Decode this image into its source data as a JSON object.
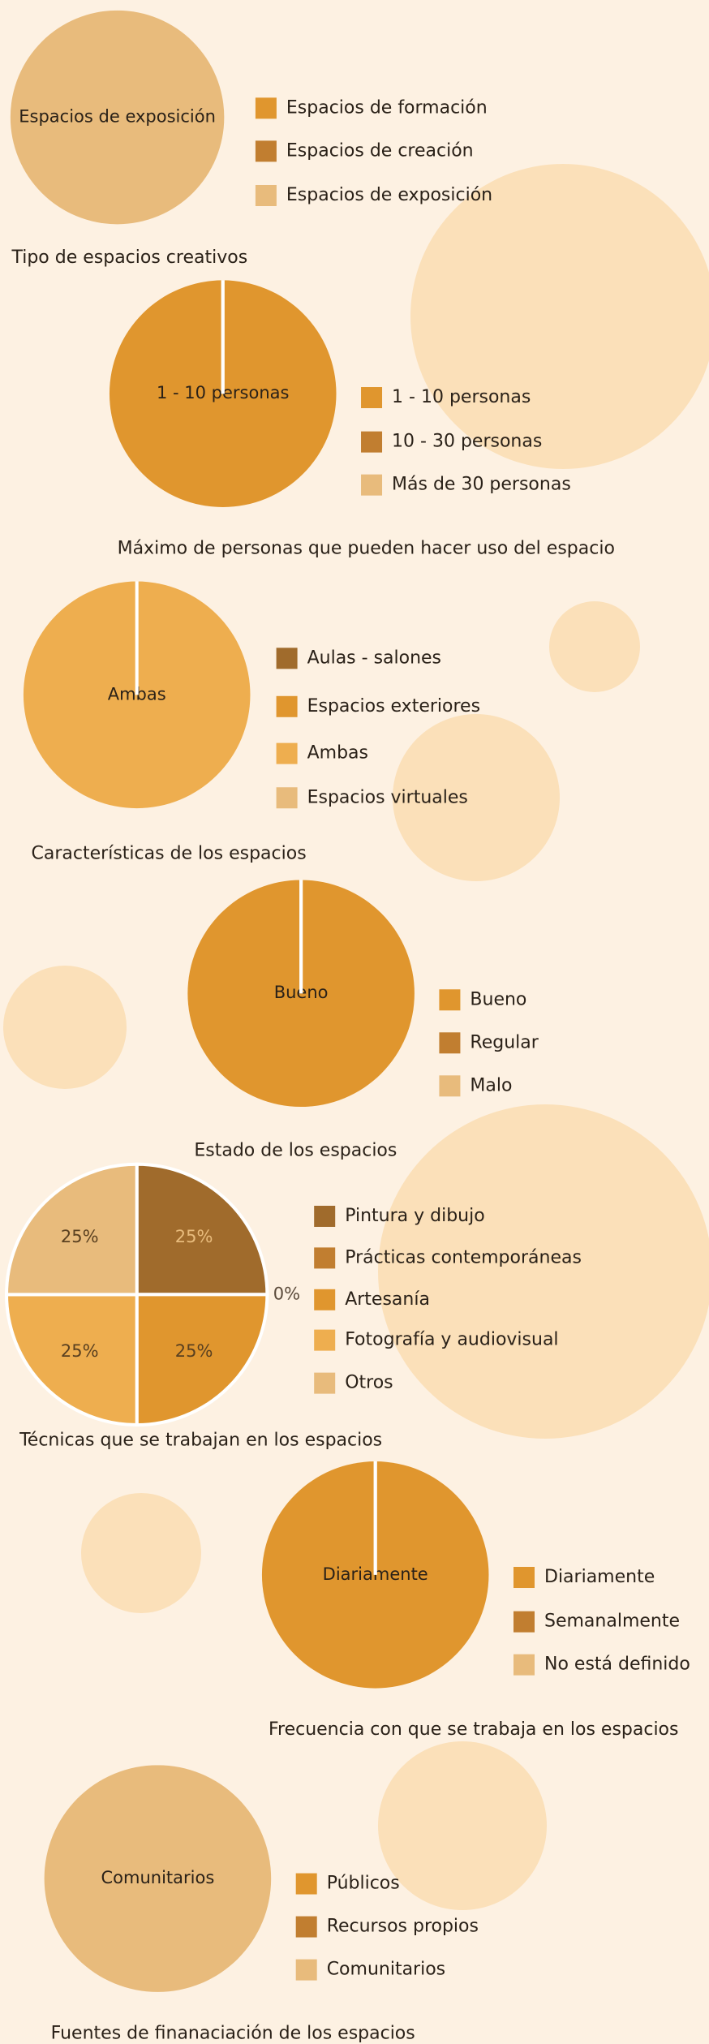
{
  "chart_data": [
    {
      "type": "pie",
      "title": "Tipo de espacios creativos",
      "categories": [
        "Espacios de formación",
        "Espacios de creación",
        "Espacios de exposición"
      ],
      "values": [
        0,
        0,
        100
      ],
      "colors": [
        "#e0962e",
        "#c17e30",
        "#e8bb7c"
      ]
    },
    {
      "type": "pie",
      "title": "Máximo de personas que pueden hacer uso del espacio",
      "categories": [
        "1 - 10 personas",
        "10 - 30 personas",
        "Más de 30 personas"
      ],
      "values": [
        100,
        0,
        0
      ],
      "colors": [
        "#e0962e",
        "#c17e30",
        "#e8bb7c"
      ]
    },
    {
      "type": "pie",
      "title": "Características de los espacios",
      "categories": [
        "Aulas - salones",
        "Espacios exteriores",
        "Ambas",
        "Espacios virtuales"
      ],
      "values": [
        0,
        0,
        100,
        0
      ],
      "colors": [
        "#a06b2c",
        "#e0962e",
        "#eeae4f",
        "#e8bb7c"
      ]
    },
    {
      "type": "pie",
      "title": "Estado de los espacios",
      "categories": [
        "Bueno",
        "Regular",
        "Malo"
      ],
      "values": [
        100,
        0,
        0
      ],
      "colors": [
        "#e0962e",
        "#c17e30",
        "#e8bb7c"
      ]
    },
    {
      "type": "pie",
      "title": "Técnicas que se trabajan en los espacios",
      "categories": [
        "Pintura y dibujo",
        "Prácticas contemporáneas",
        "Artesanía",
        "Fotografía y audiovisual",
        "Otros"
      ],
      "values": [
        25,
        0,
        25,
        25,
        25
      ],
      "value_labels": [
        "25%",
        "0%",
        "25%",
        "25%",
        "25%"
      ],
      "colors": [
        "#a06b2c",
        "#c17e30",
        "#e0962e",
        "#eeae4f",
        "#e8bb7c"
      ]
    },
    {
      "type": "pie",
      "title": "Frecuencia con que se trabaja en los espacios",
      "categories": [
        "Diariamente",
        "Semanalmente",
        "No está definido"
      ],
      "values": [
        100,
        0,
        0
      ],
      "colors": [
        "#e0962e",
        "#c17e30",
        "#e8bb7c"
      ]
    },
    {
      "type": "pie",
      "title": "Fuentes de finanaciación de los espacios",
      "categories": [
        "Públicos",
        "Recursos propios",
        "Comunitarios"
      ],
      "values": [
        0,
        0,
        100
      ],
      "colors": [
        "#e0962e",
        "#c17e30",
        "#e8bb7c"
      ]
    }
  ]
}
